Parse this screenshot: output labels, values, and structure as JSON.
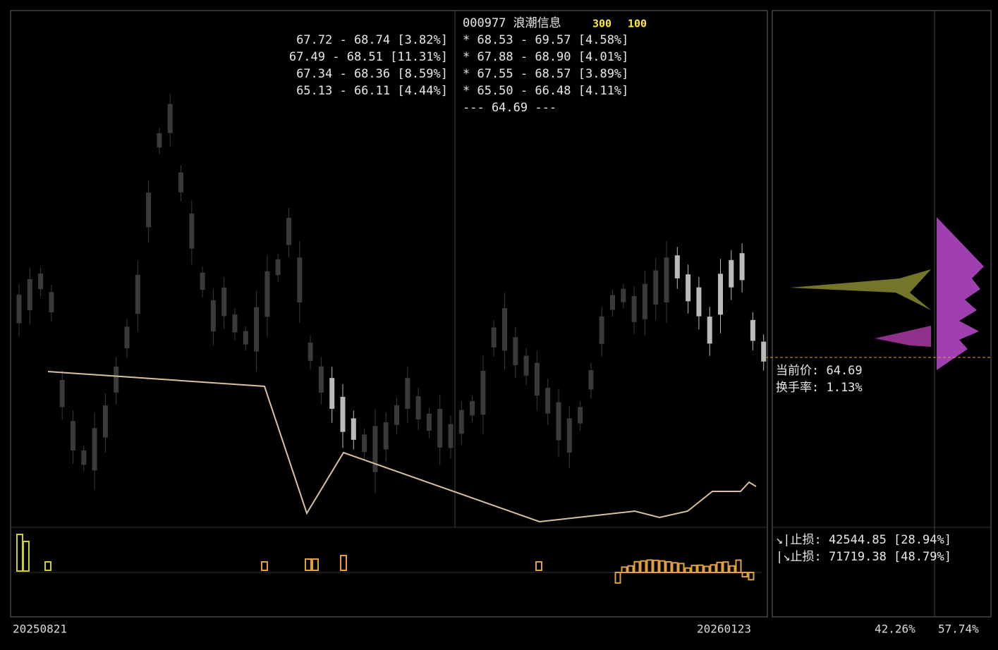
{
  "header": {
    "code_name": "000977 浪潮信息",
    "tag_a": "300",
    "tag_b": "100"
  },
  "left_rows": [
    "67.72 - 68.74 [3.82%]",
    "67.49 - 68.51 [11.31%]",
    "67.34 - 68.36 [8.59%]",
    "65.13 - 66.11 [4.44%]"
  ],
  "right_rows": [
    "* 68.53 - 69.57 [4.58%]",
    "* 67.88 - 68.90 [4.01%]",
    "* 67.55 - 68.57 [3.89%]",
    "* 65.50 - 66.48 [4.11%]"
  ],
  "price_line": "--- 64.69 ---",
  "side_info": {
    "current_price": "当前价: 64.69",
    "turnover": "换手率: 1.13%"
  },
  "stops": [
    "↘|止损: 42544.85 [28.94%]",
    "|↘止损: 71719.38 [48.79%]"
  ],
  "footer": {
    "start_date": "20250821",
    "end_date": "20260123",
    "pct_a": "42.26%",
    "pct_b": "57.74%"
  }
}
